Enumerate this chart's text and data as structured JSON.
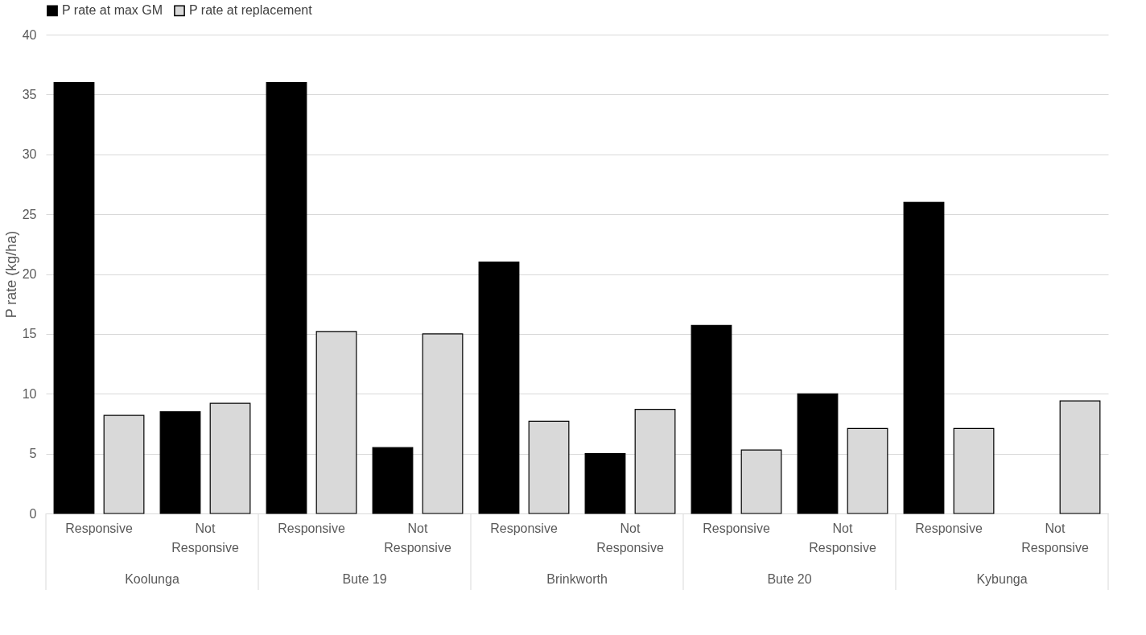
{
  "chart_data": {
    "type": "bar",
    "ylabel": "P rate (kg/ha)",
    "categories": [
      "Responsive",
      "Not Responsive",
      "Responsive",
      "Not Responsive",
      "Responsive",
      "Not Responsive",
      "Responsive",
      "Not Responsive",
      "Responsive",
      "Not Responsive"
    ],
    "annotations": [
      "Koolunga",
      "Bute 19",
      "Brinkworth",
      "Bute 20",
      "Kybunga"
    ],
    "series": [
      {
        "name": "P rate at max GM",
        "color": "#000000",
        "values": [
          36,
          8.5,
          36,
          5.5,
          21,
          5.0,
          15.7,
          10.0,
          26,
          null
        ]
      },
      {
        "name": "P rate at replacement",
        "color": "#d9d9d9",
        "values": [
          8.2,
          9.2,
          15.2,
          15.0,
          7.7,
          8.7,
          5.3,
          7.1,
          7.1,
          9.4
        ]
      }
    ],
    "ylim": [
      0,
      40
    ],
    "yticks": [
      0,
      5,
      10,
      15,
      20,
      25,
      30,
      35,
      40
    ],
    "grid": "y",
    "legend": "top"
  }
}
